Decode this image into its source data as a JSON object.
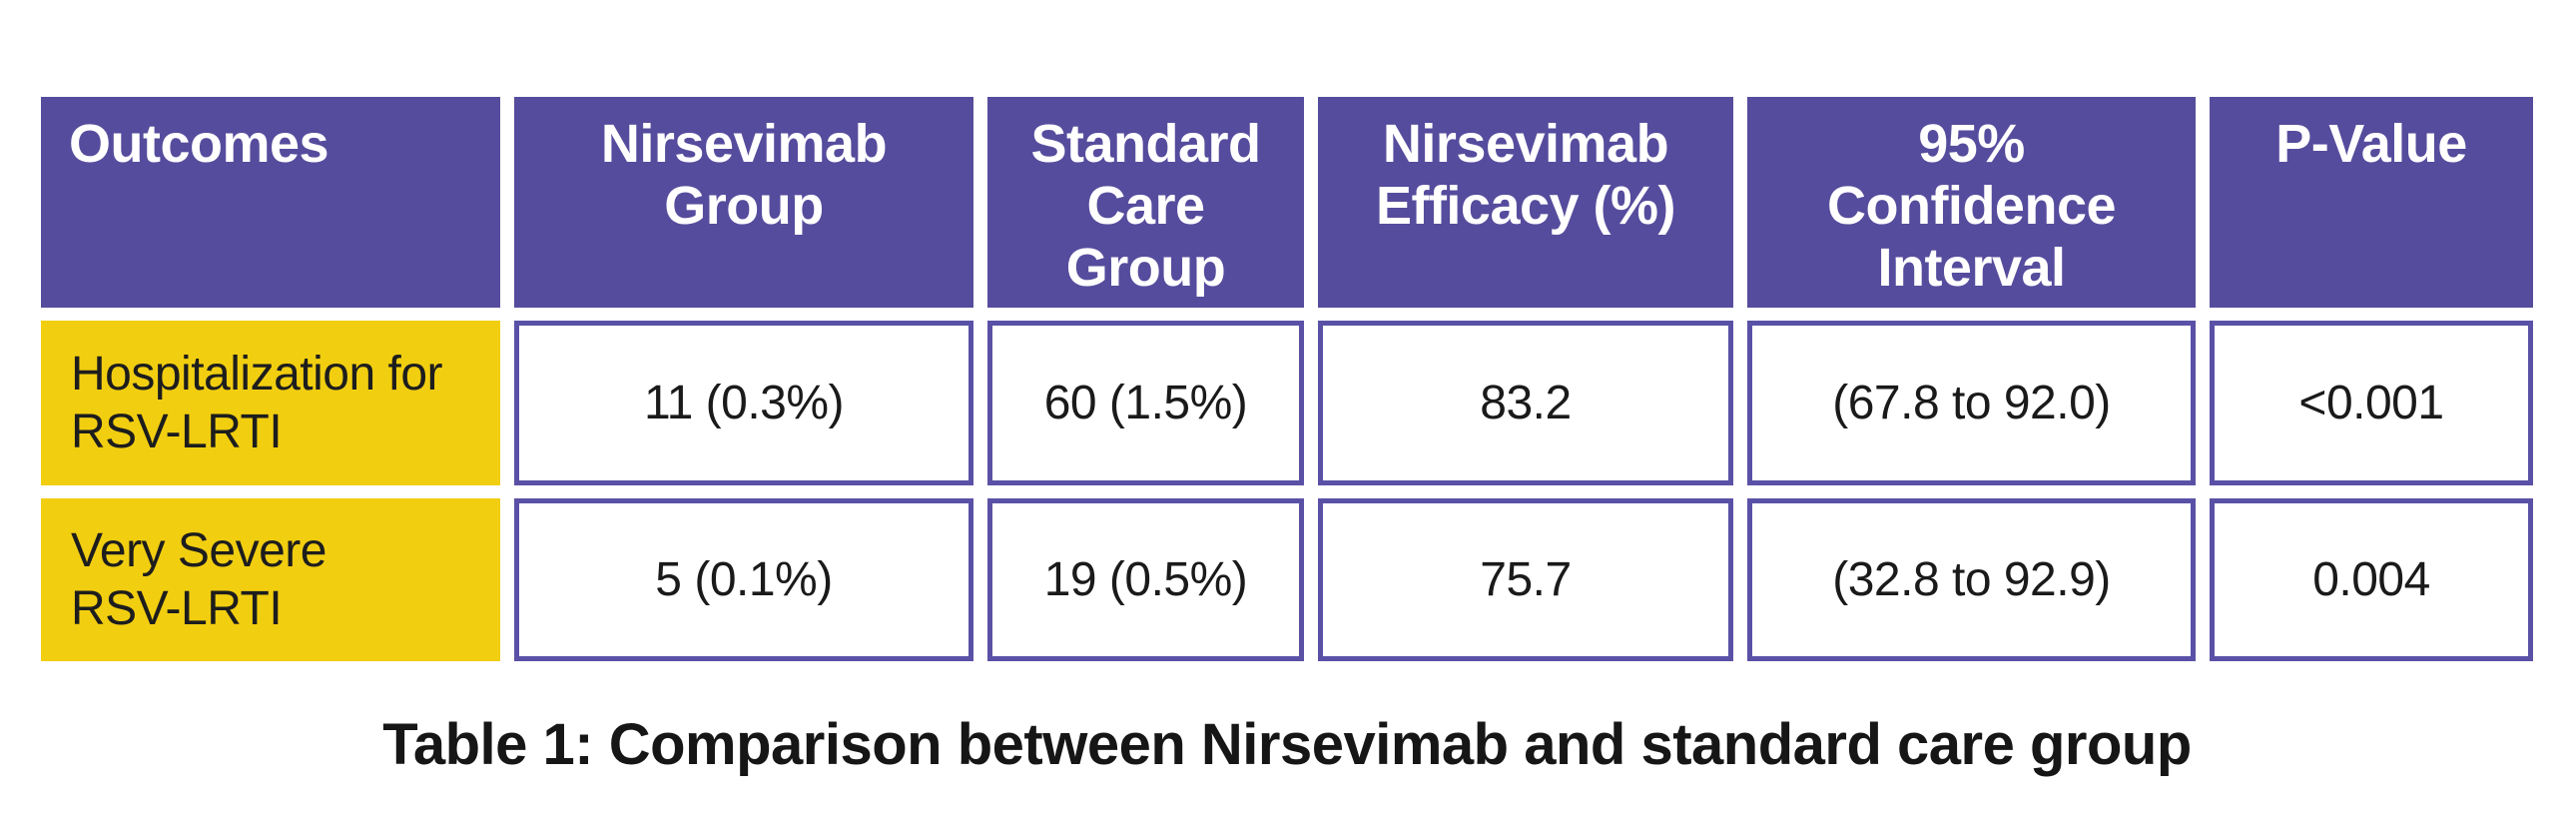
{
  "figure": {
    "caption": "Table 1: Comparison between Nirsevimab and standard care group"
  },
  "colors": {
    "header_background": "#564c9d",
    "cell_border": "#5a51a7",
    "row_label_background": "#f2ce10",
    "header_text": "#ffffff",
    "body_text": "#1a1a1a",
    "page_background": "#ffffff"
  },
  "table": {
    "headers": [
      {
        "id": "outcomes",
        "label": "Outcomes"
      },
      {
        "id": "nirsevimab-group",
        "label": "Nirsevimab\nGroup"
      },
      {
        "id": "standard-care-group",
        "label": "Standard\nCare\nGroup"
      },
      {
        "id": "nirsevimab-efficacy",
        "label": "Nirsevimab\nEfficacy (%)"
      },
      {
        "id": "confidence-interval",
        "label": "95%\nConfidence\nInterval"
      },
      {
        "id": "p-value",
        "label": "P-Value"
      }
    ],
    "rows": [
      {
        "outcome": "Hospitalization for\nRSV-LRTI",
        "nirsevimab_group": "11 (0.3%)",
        "standard_care_group": "60 (1.5%)",
        "efficacy_percent": "83.2",
        "confidence_interval": "(67.8 to 92.0)",
        "p_value": "<0.001"
      },
      {
        "outcome": "Very Severe\nRSV-LRTI",
        "nirsevimab_group": "5 (0.1%)",
        "standard_care_group": "19 (0.5%)",
        "efficacy_percent": "75.7",
        "confidence_interval": "(32.8 to 92.9)",
        "p_value": "0.004"
      }
    ]
  }
}
